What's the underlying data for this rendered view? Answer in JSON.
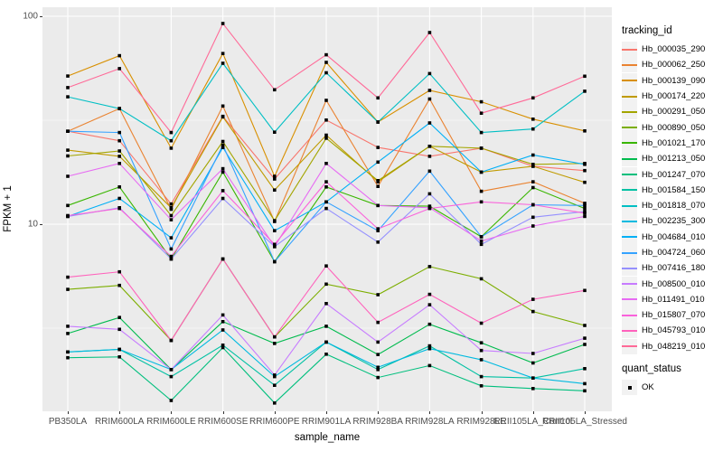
{
  "style": {
    "panel_background": "#EBEBEB",
    "gridline_color": "#FFFFFF",
    "tick_label_color": "#4D4D4D",
    "point_color": "#000000",
    "legend_key_background": "#F2F2F2"
  },
  "chart_data": {
    "type": "line",
    "title": "",
    "xlabel": "sample_name",
    "ylabel": "FPKM + 1",
    "y_scale": "log10",
    "ylim": [
      1.26,
      110
    ],
    "y_major_ticks": [
      {
        "label": "100",
        "value": 100
      },
      {
        "label": "10",
        "value": 10
      }
    ],
    "y_minor_gridlines": [
      31.62,
      3.162
    ],
    "grid": "on",
    "legend_position": "right",
    "legend": {
      "tracking_title": "tracking_id",
      "quant_title": "quant_status",
      "quant_label": "OK",
      "quant_marker": "black-square"
    },
    "categories": [
      "PB350LA",
      "RRIM600LA",
      "RRIM600LE",
      "RRIM600SE",
      "RRIM600PE",
      "RRIM901LA",
      "RRIM928BA",
      "RRIM928LA",
      "RRIM928LE",
      "RRII105LA_Control",
      "RRII105LA_Stressed"
    ],
    "series": [
      {
        "name": "Hb_000035_290",
        "color": "#F8766D",
        "values": [
          28,
          25.2,
          12.5,
          33,
          16.5,
          31.7,
          23.4,
          21.2,
          23.2,
          19,
          18.1
        ]
      },
      {
        "name": "Hb_000062_250",
        "color": "#EA8331",
        "values": [
          28,
          36,
          11.8,
          37,
          10.3,
          39.4,
          15.2,
          40,
          14.4,
          16,
          12.6
        ]
      },
      {
        "name": "Hb_000139_090",
        "color": "#D89000",
        "values": [
          51.6,
          64.6,
          23.2,
          66.2,
          17,
          60,
          31,
          44,
          38.8,
          32,
          28.1
        ]
      },
      {
        "name": "Hb_000174_220",
        "color": "#C09B00",
        "values": [
          22.7,
          21.2,
          12,
          32.8,
          14.6,
          26.8,
          16,
          23.7,
          17.8,
          19,
          15.9
        ]
      },
      {
        "name": "Hb_000291_050",
        "color": "#A3A500",
        "values": [
          21.3,
          22.5,
          11,
          25,
          10.4,
          25.9,
          16.2,
          23.7,
          23.2,
          19.4,
          19.6
        ]
      },
      {
        "name": "Hb_000890_050",
        "color": "#7CAE00",
        "values": [
          4.86,
          5.08,
          2.76,
          6.8,
          2.87,
          5.15,
          4.58,
          6.25,
          5.46,
          3.8,
          3.26
        ]
      },
      {
        "name": "Hb_001021_170",
        "color": "#39B600",
        "values": [
          12.3,
          15.1,
          6.8,
          17.8,
          6.6,
          15.1,
          12.3,
          12.2,
          8.7,
          15,
          11.9
        ]
      },
      {
        "name": "Hb_001213_050",
        "color": "#00BB4E",
        "values": [
          2.98,
          3.56,
          2.0,
          3.4,
          2.67,
          3.23,
          2.36,
          3.3,
          2.69,
          2.15,
          2.64
        ]
      },
      {
        "name": "Hb_001247_070",
        "color": "#00BF7D",
        "values": [
          2.28,
          2.3,
          1.42,
          2.55,
          1.38,
          2.37,
          1.83,
          2.09,
          1.67,
          1.62,
          1.58
        ]
      },
      {
        "name": "Hb_001584_150",
        "color": "#00C1A3",
        "values": [
          2.43,
          2.5,
          1.85,
          2.62,
          1.68,
          2.71,
          2.0,
          2.6,
          1.85,
          1.82,
          2.02
        ]
      },
      {
        "name": "Hb_001818_070",
        "color": "#00BFC4",
        "values": [
          41,
          36,
          25.2,
          59.4,
          27.7,
          53.5,
          31,
          53,
          27.6,
          28.7,
          43.6
        ]
      },
      {
        "name": "Hb_002235_300",
        "color": "#00BAE0",
        "values": [
          2.43,
          2.5,
          2.0,
          3.1,
          1.85,
          2.71,
          2.05,
          2.52,
          2.23,
          1.82,
          1.71
        ]
      },
      {
        "name": "Hb_004684_010",
        "color": "#00B0F6",
        "values": [
          10.9,
          13.3,
          8.6,
          23.4,
          9.3,
          12.8,
          19.9,
          30.7,
          17.8,
          21.5,
          19.4
        ]
      },
      {
        "name": "Hb_004724_060",
        "color": "#35A2FF",
        "values": [
          28,
          27.6,
          7.6,
          24,
          6.6,
          12.8,
          9.3,
          18,
          8.7,
          12.4,
          12.3
        ]
      },
      {
        "name": "Hb_007416_180",
        "color": "#9590FF",
        "values": [
          10.9,
          12,
          6.8,
          13.3,
          7.8,
          11.9,
          8.2,
          14,
          8.0,
          10.8,
          11.5
        ]
      },
      {
        "name": "Hb_008500_010",
        "color": "#C77CFF",
        "values": [
          3.23,
          3.12,
          2.0,
          3.66,
          1.88,
          4.15,
          2.71,
          4.1,
          2.47,
          2.39,
          2.83
        ]
      },
      {
        "name": "Hb_011491_010",
        "color": "#E76BF3",
        "values": [
          17,
          19.6,
          10.5,
          18.5,
          7.8,
          19.6,
          12.3,
          12,
          8.3,
          9.8,
          10.9
        ]
      },
      {
        "name": "Hb_015807_070",
        "color": "#FA62DB",
        "values": [
          11,
          11.9,
          7.0,
          14.5,
          8.0,
          16.0,
          9.5,
          11.9,
          12.8,
          12.4,
          11.3
        ]
      },
      {
        "name": "Hb_045793_010",
        "color": "#FF62BC",
        "values": [
          5.56,
          5.9,
          2.76,
          6.8,
          2.87,
          6.3,
          3.37,
          4.6,
          3.34,
          4.35,
          4.8
        ]
      },
      {
        "name": "Hb_048219_010",
        "color": "#FF6A98",
        "values": [
          45.4,
          56,
          27.6,
          92.3,
          44.3,
          65.3,
          40.5,
          83.5,
          34.2,
          40.5,
          51.5
        ]
      }
    ]
  }
}
